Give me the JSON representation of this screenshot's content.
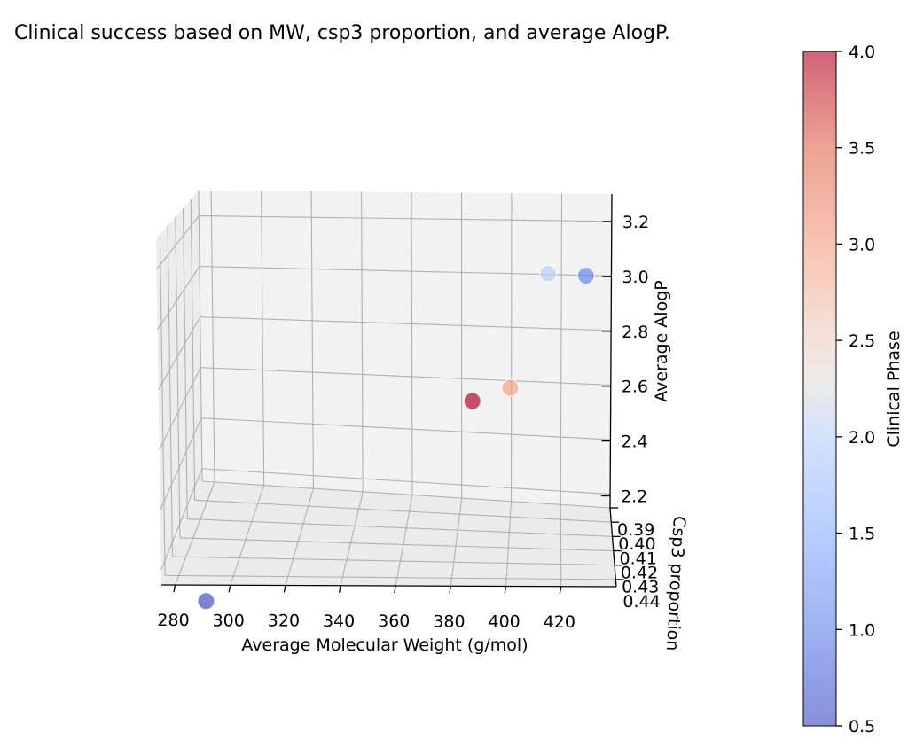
{
  "chart_data": {
    "type": "scatter3d",
    "title": "Clinical success based on MW, csp3 proportion, and average AlogP.",
    "xlabel": "Average Molecular Weight (g/mol)",
    "ylabel": "Csp3 proportion",
    "zlabel": "Average AlogP",
    "xlim": [
      275,
      440
    ],
    "ylim": [
      0.39,
      0.445
    ],
    "zlim": [
      2.15,
      3.3
    ],
    "x_ticks": [
      "280",
      "300",
      "320",
      "340",
      "360",
      "380",
      "400",
      "420"
    ],
    "y_ticks": [
      "0.39",
      "0.40",
      "0.41",
      "0.42",
      "0.43",
      "0.44"
    ],
    "z_ticks": [
      "2.2",
      "2.4",
      "2.6",
      "2.8",
      "3.0",
      "3.2"
    ],
    "colorbar": {
      "label": "Clinical Phase",
      "min": 0.5,
      "max": 4.0,
      "ticks": [
        "0.5",
        "1.0",
        "1.5",
        "2.0",
        "2.5",
        "3.0",
        "3.5",
        "4.0"
      ]
    },
    "points": [
      {
        "mw": 290,
        "csp3": 0.44,
        "alogp": 2.05,
        "phase": 0.5
      },
      {
        "mw": 385,
        "csp3": 0.4,
        "alogp": 2.6,
        "phase": 4.0
      },
      {
        "mw": 400,
        "csp3": 0.4,
        "alogp": 2.66,
        "phase": 3.0
      },
      {
        "mw": 415,
        "csp3": 0.4,
        "alogp": 3.12,
        "phase": 2.0
      },
      {
        "mw": 430,
        "csp3": 0.4,
        "alogp": 3.12,
        "phase": 1.0
      }
    ],
    "colors": {
      "pane": "#f2f2f2",
      "grid": "#b0b0b0",
      "low": "#3b4cc0",
      "mid": "#dddddd",
      "high": "#b40426"
    }
  }
}
